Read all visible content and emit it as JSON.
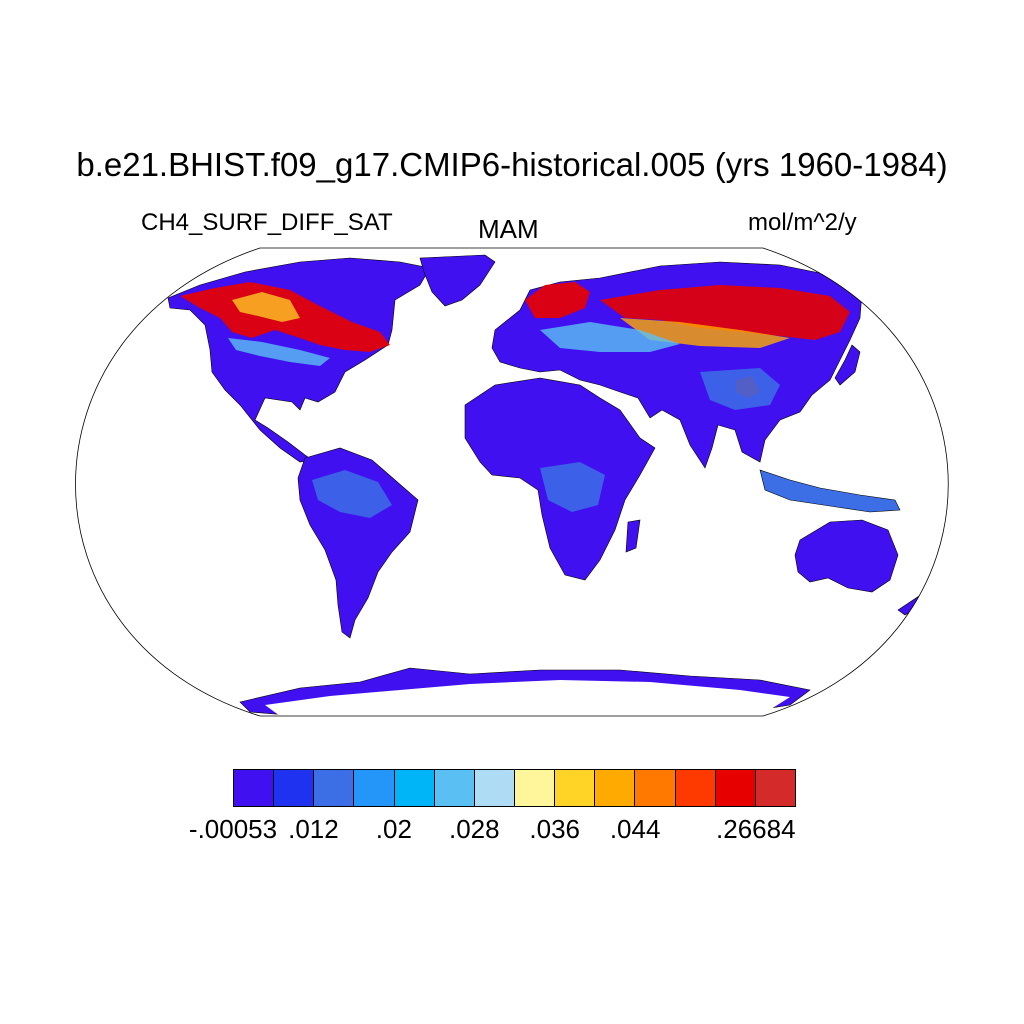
{
  "title": "b.e21.BHIST.f09_g17.CMIP6-historical.005 (yrs 1960-1984)",
  "left_label": "CH4_SURF_DIFF_SAT",
  "center_label": "MAM",
  "right_label": "mol/m^2/y",
  "colorbar": {
    "colors": [
      "#4010f0",
      "#1e32f0",
      "#3c6ee6",
      "#2496fa",
      "#00b4f8",
      "#5ac0f4",
      "#afdcf5",
      "#fff59a",
      "#ffd426",
      "#ffaa00",
      "#ff7800",
      "#ff3a00",
      "#e60000",
      "#d42a2a"
    ],
    "labels": [
      {
        "text": "-.00053",
        "boundary": 0
      },
      {
        "text": ".012",
        "boundary": 2
      },
      {
        "text": ".02",
        "boundary": 4
      },
      {
        "text": ".028",
        "boundary": 6
      },
      {
        "text": ".036",
        "boundary": 8
      },
      {
        "text": ".044",
        "boundary": 10
      },
      {
        "text": ".26684",
        "boundary": 13
      }
    ]
  }
}
